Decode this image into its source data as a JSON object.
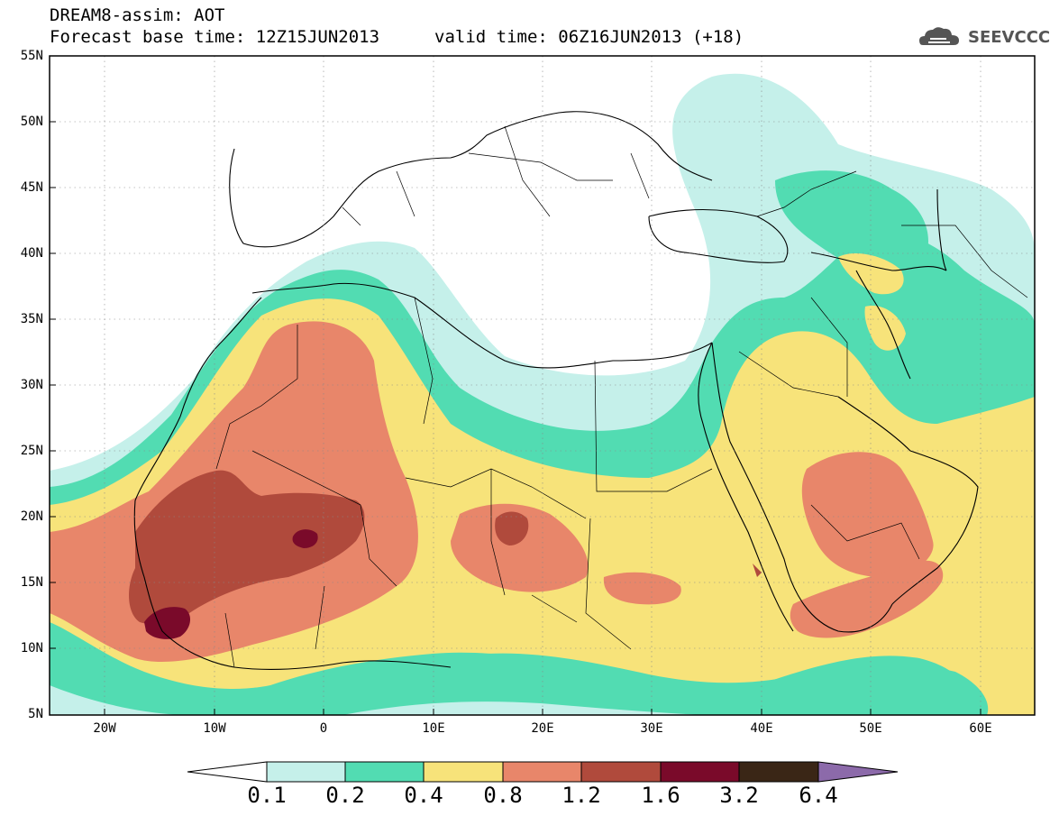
{
  "header": {
    "title_line1": "DREAM8-assim: AOT",
    "title_line2": "Forecast base time: 12Z15JUN2013",
    "valid_time": "valid time: 06Z16JUN2013 (+18)",
    "logo_text": "SEEVCCC"
  },
  "axes": {
    "lat_labels": [
      "55N",
      "50N",
      "45N",
      "40N",
      "35N",
      "30N",
      "25N",
      "20N",
      "15N",
      "10N",
      "5N"
    ],
    "lon_labels": [
      "20W",
      "10W",
      "0",
      "10E",
      "20E",
      "30E",
      "40E",
      "50E",
      "60E"
    ]
  },
  "colorbar": {
    "labels": [
      "0.1",
      "0.2",
      "0.4",
      "0.8",
      "1.2",
      "1.6",
      "3.2",
      "6.4"
    ],
    "colors": [
      "#ffffff",
      "#c5f0ea",
      "#52dcb2",
      "#f7e37a",
      "#e8866a",
      "#b04a3c",
      "#7a0a2a",
      "#3a2616",
      "#8c6aaa"
    ]
  },
  "legend": {
    "colors": {
      "c01": "#c5f0ea",
      "c02": "#52dcb2",
      "c04": "#f7e37a",
      "c08": "#e8866a",
      "c12": "#b04a3c",
      "c16": "#7a0a2a"
    }
  }
}
